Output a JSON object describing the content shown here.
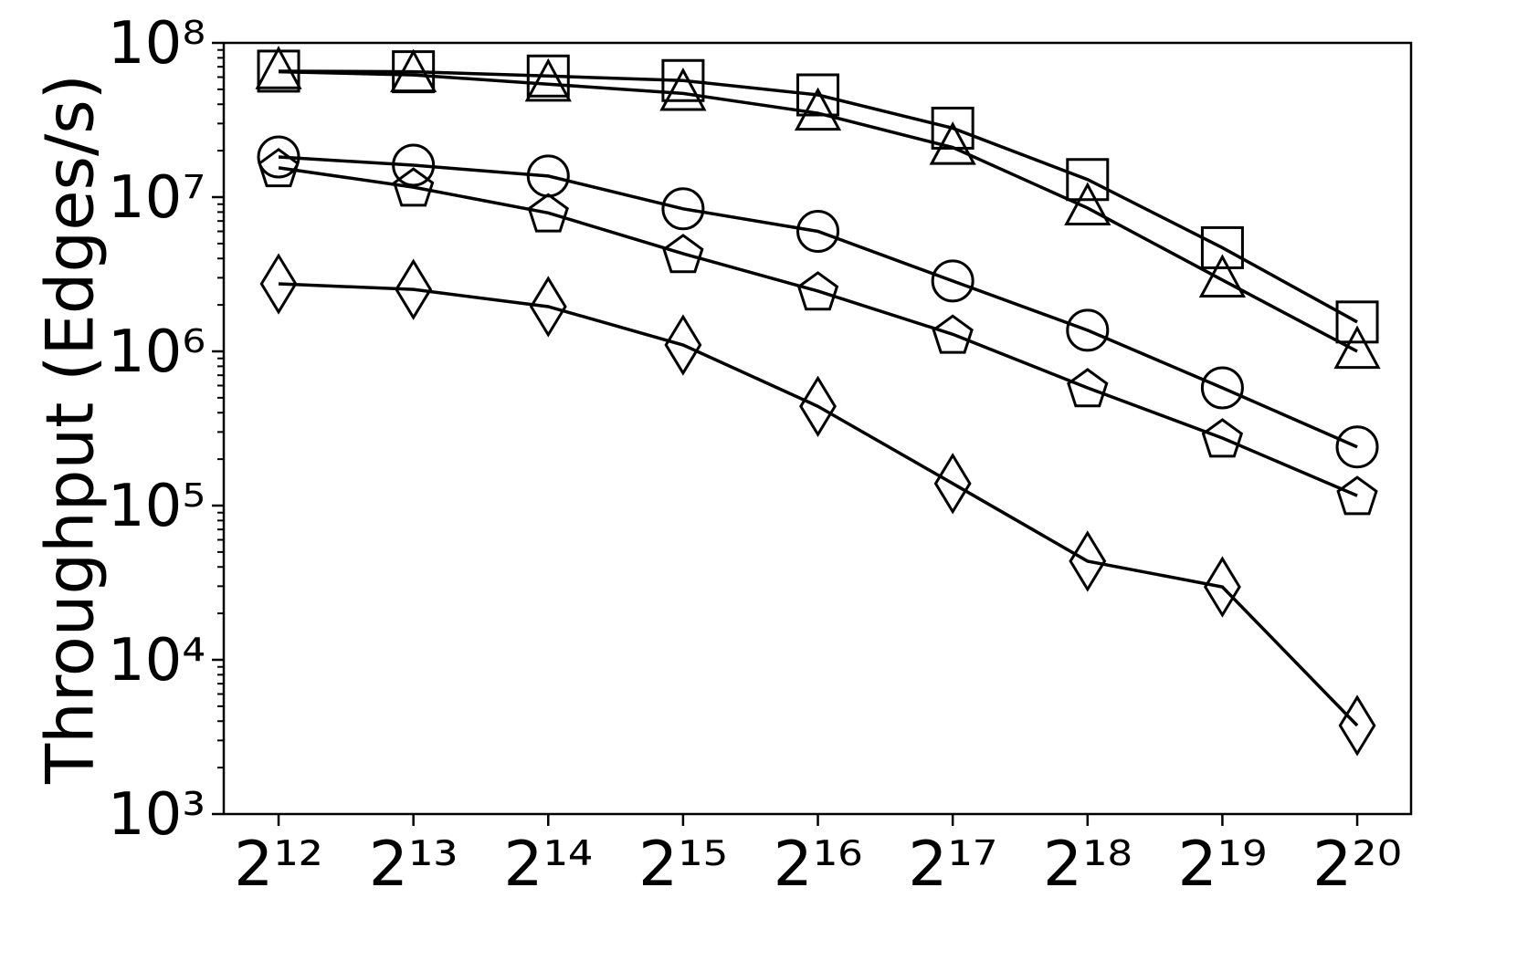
{
  "chart_data": {
    "type": "line",
    "y_label": "Throughput (Edges/s)",
    "x": [
      4096,
      8192,
      16384,
      32768,
      65536,
      131072,
      262144,
      524288,
      1048576
    ],
    "xscale": "log",
    "xlog_base": 2,
    "xlim": [
      3090,
      1383000
    ],
    "xticks": [
      {
        "value": 4096,
        "label": "2¹²"
      },
      {
        "value": 8192,
        "label": "2¹³"
      },
      {
        "value": 16384,
        "label": "2¹⁴"
      },
      {
        "value": 32768,
        "label": "2¹⁵"
      },
      {
        "value": 65536,
        "label": "2¹⁶"
      },
      {
        "value": 131072,
        "label": "2¹⁷"
      },
      {
        "value": 262144,
        "label": "2¹⁸"
      },
      {
        "value": 524288,
        "label": "2¹⁹"
      },
      {
        "value": 1048576,
        "label": "2²⁰"
      }
    ],
    "yscale": "log",
    "ylim": [
      1000,
      100000000
    ],
    "yticks": [
      {
        "value": 1000,
        "label": "10³"
      },
      {
        "value": 10000,
        "label": "10⁴"
      },
      {
        "value": 100000,
        "label": "10⁵"
      },
      {
        "value": 1000000,
        "label": "10⁶"
      },
      {
        "value": 10000000,
        "label": "10⁷"
      },
      {
        "value": 100000000,
        "label": "10⁸"
      }
    ],
    "grid": false,
    "series": [
      {
        "marker": "square",
        "color": "#000000",
        "values": [
          65600000,
          65000000,
          61000000,
          57000000,
          46000000,
          28000000,
          13000000,
          4700000,
          1550000
        ]
      },
      {
        "marker": "triangle",
        "color": "#000000",
        "values": [
          65000000,
          62000000,
          54000000,
          47000000,
          35000000,
          21000000,
          8500000,
          2900000,
          1000000
        ]
      },
      {
        "marker": "circle",
        "color": "#000000",
        "values": [
          18200000,
          16100000,
          13700000,
          8400000,
          6000000,
          2860000,
          1370000,
          580000,
          240000
        ]
      },
      {
        "marker": "pentagon",
        "color": "#000000",
        "values": [
          15500000,
          11600000,
          7900000,
          4300000,
          2460000,
          1290000,
          580000,
          274000,
          116000
        ]
      },
      {
        "marker": "diamond",
        "color": "#000000",
        "values": [
          2740000,
          2520000,
          1950000,
          1100000,
          440000,
          139000,
          43600,
          29700,
          3750
        ]
      }
    ]
  }
}
